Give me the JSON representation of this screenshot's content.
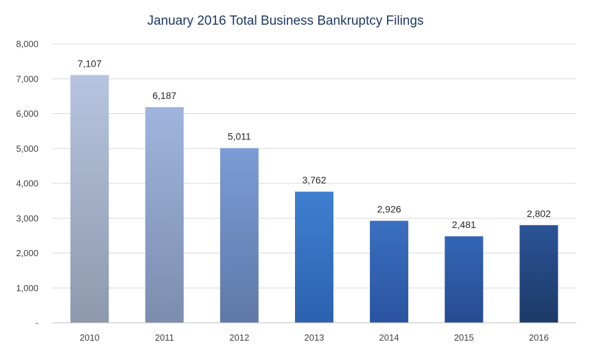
{
  "chart_data": {
    "type": "bar",
    "title": "January 2016 Total Business Bankruptcy Filings",
    "xlabel": "",
    "ylabel": "",
    "categories": [
      "2010",
      "2011",
      "2012",
      "2013",
      "2014",
      "2015",
      "2016"
    ],
    "values": [
      7107,
      6187,
      5011,
      3762,
      2926,
      2481,
      2802
    ],
    "data_labels": [
      "7,107",
      "6,187",
      "5,011",
      "3,762",
      "2,926",
      "2,481",
      "2,802"
    ],
    "ylim": [
      0,
      8000
    ],
    "yticks": [
      0,
      1000,
      2000,
      3000,
      4000,
      5000,
      6000,
      7000,
      8000
    ],
    "ytick_labels": [
      "-",
      "1,000",
      "2,000",
      "3,000",
      "4,000",
      "5,000",
      "6,000",
      "7,000",
      "8,000"
    ],
    "grid": true,
    "legend": "none",
    "bar_colors": [
      {
        "top": "#b6c4e0",
        "bottom": "#8d99ab"
      },
      {
        "top": "#9fb5dd",
        "bottom": "#7b8dae"
      },
      {
        "top": "#7b9cd6",
        "bottom": "#5f78a8"
      },
      {
        "top": "#3f7fcf",
        "bottom": "#2c62b0"
      },
      {
        "top": "#3a6fc0",
        "bottom": "#2a54a0"
      },
      {
        "top": "#3466b6",
        "bottom": "#274b92"
      },
      {
        "top": "#2b5497",
        "bottom": "#1c3966"
      }
    ]
  }
}
